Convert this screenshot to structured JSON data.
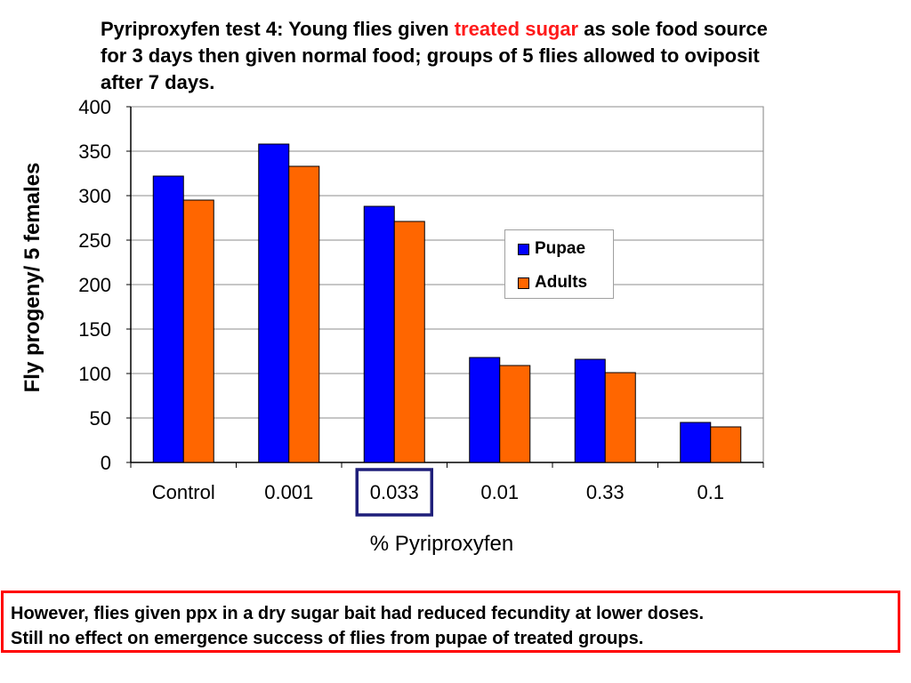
{
  "title": {
    "part1": "Pyriproxyfen test 4: Young flies given ",
    "highlight": "treated sugar",
    "part2": " as sole food source for 3 days then given normal food; groups of 5 flies allowed to oviposit after 7 days."
  },
  "chart_data": {
    "type": "bar",
    "categories": [
      "Control",
      "0.001",
      "0.033",
      "0.01",
      "0.33",
      "0.1"
    ],
    "series": [
      {
        "name": "Pupae",
        "values": [
          322,
          358,
          288,
          118,
          116,
          45
        ],
        "color": "#0000ff"
      },
      {
        "name": "Adults",
        "values": [
          295,
          333,
          271,
          109,
          101,
          40
        ],
        "color": "#ff6600"
      }
    ],
    "xlabel": "% Pyriproxyfen",
    "ylabel": "Fly progeny/ 5 females",
    "ylim": [
      0,
      400
    ],
    "yticks": [
      0,
      50,
      100,
      150,
      200,
      250,
      300,
      350,
      400
    ],
    "grid": true,
    "legend_position": "right",
    "highlighted_category": "0.033",
    "highlight_color": "#1f1f7a"
  },
  "note": {
    "line1": "However, flies given ppx in a dry sugar bait had reduced fecundity at lower doses.",
    "line2": "Still no effect on emergence success of flies from pupae of treated groups."
  }
}
